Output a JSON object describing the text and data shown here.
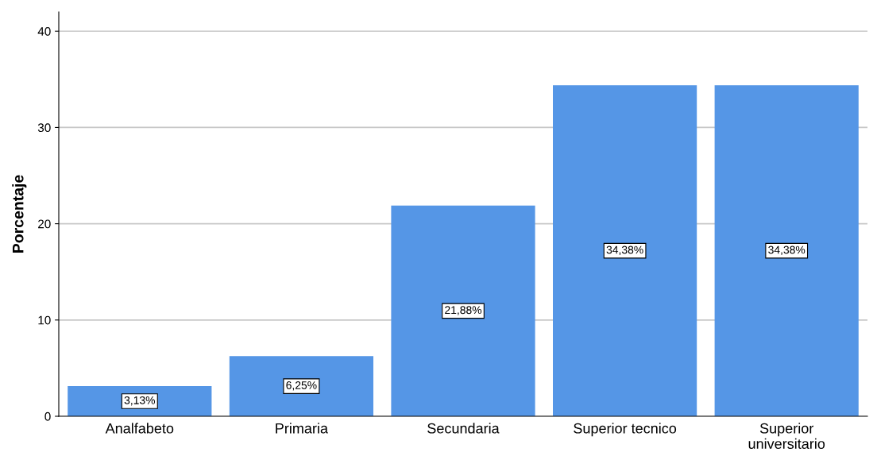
{
  "chart_data": {
    "type": "bar",
    "ylabel": "Porcentaje",
    "categories": [
      "Analfabeto",
      "Primaria",
      "Secundaria",
      "Superior tecnico",
      "Superior universitario"
    ],
    "values": [
      3.13,
      6.25,
      21.88,
      34.38,
      34.38
    ],
    "value_labels": [
      "3,13%",
      "6,25%",
      "21,88%",
      "34,38%",
      "34,38%"
    ],
    "color": "#5596e6",
    "ylim": [
      0,
      42
    ],
    "yticks": [
      0,
      10,
      20,
      30,
      40
    ],
    "grid": "y",
    "legend": false
  }
}
